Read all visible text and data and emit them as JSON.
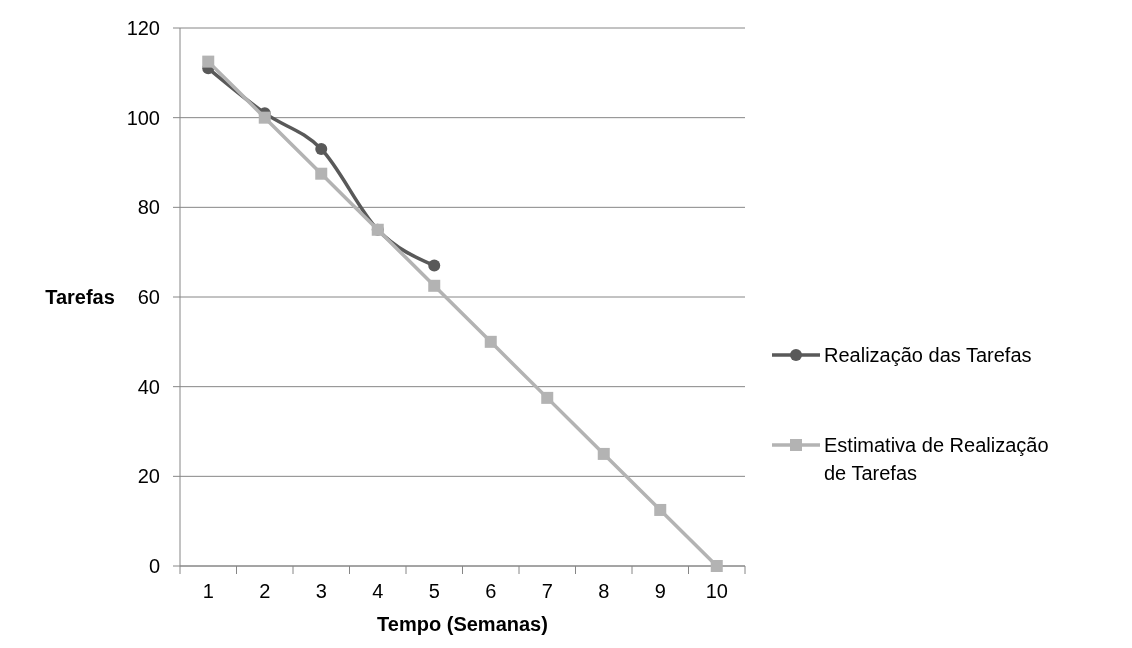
{
  "chart_data": {
    "type": "line",
    "xlabel": "Tempo (Semanas)",
    "ylabel": "Tarefas",
    "categories": [
      "1",
      "2",
      "3",
      "4",
      "5",
      "6",
      "7",
      "8",
      "9",
      "10"
    ],
    "series": [
      {
        "name": "Realização das Tarefas",
        "color": "#595959",
        "marker": "circle",
        "values": [
          111,
          101,
          93,
          75,
          67,
          null,
          null,
          null,
          null,
          null
        ]
      },
      {
        "name": "Estimativa de Realização de Tarefas",
        "color": "#b3b3b3",
        "marker": "square",
        "values": [
          112.5,
          100,
          87.5,
          75,
          62.5,
          50,
          37.5,
          25,
          12.5,
          0
        ]
      }
    ],
    "ylim": [
      0,
      120
    ],
    "yticks": [
      0,
      20,
      40,
      60,
      80,
      100,
      120
    ],
    "grid": "y",
    "legend": "right"
  }
}
